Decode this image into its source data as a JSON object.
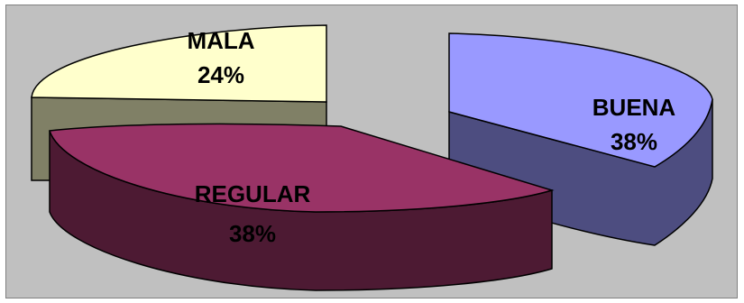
{
  "chart_data": {
    "type": "pie",
    "style": "3d-exploded",
    "title": "",
    "legend": "none",
    "slices": [
      {
        "category": "BUENA",
        "value": 38,
        "label": "38%",
        "color": "#9999ff",
        "side_color": "#4d4d80"
      },
      {
        "category": "REGULAR",
        "value": 38,
        "label": "38%",
        "color": "#993366",
        "side_color": "#4d1a33"
      },
      {
        "category": "MALA",
        "value": 24,
        "label": "24%",
        "color": "#ffffcc",
        "side_color": "#808066"
      }
    ]
  }
}
